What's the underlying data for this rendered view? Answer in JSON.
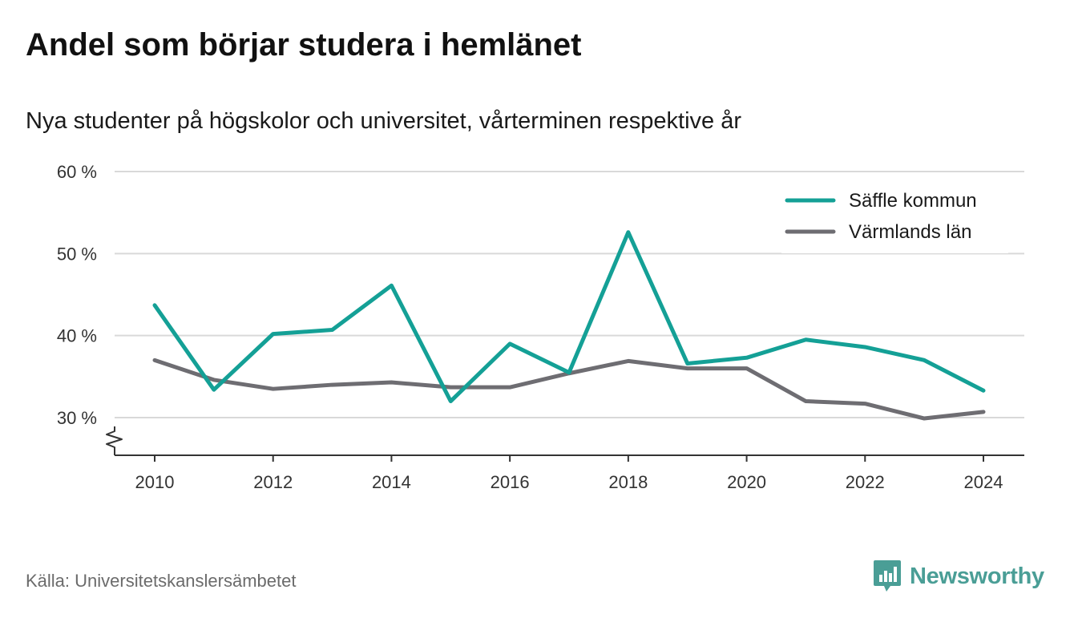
{
  "header": {
    "title": "Andel som börjar studera i hemlänet",
    "subtitle": "Nya studenter på högskolor och universitet, vårterminen respektive år"
  },
  "footer": {
    "source": "Källa: Universitetskanslersämbetet",
    "brand": "Newsworthy",
    "brand_color": "#4a9e96"
  },
  "chart_data": {
    "type": "line",
    "x": [
      2010,
      2011,
      2012,
      2013,
      2014,
      2015,
      2016,
      2017,
      2018,
      2019,
      2020,
      2021,
      2022,
      2023,
      2024
    ],
    "x_ticks": [
      2010,
      2012,
      2014,
      2016,
      2018,
      2020,
      2022,
      2024
    ],
    "x_tick_labels": [
      "2010",
      "2012",
      "2014",
      "2016",
      "2018",
      "2020",
      "2022",
      "2024"
    ],
    "y_ticks": [
      30,
      40,
      50,
      60
    ],
    "y_tick_labels": [
      "30 %",
      "40 %",
      "50 %",
      "60 %"
    ],
    "ylim": [
      30,
      60
    ],
    "axis_break": true,
    "grid": true,
    "legend_position": "top-right",
    "series": [
      {
        "name": "Säffle kommun",
        "color": "#14a096",
        "values": [
          43.7,
          33.4,
          40.2,
          40.7,
          46.1,
          32.0,
          39.0,
          35.5,
          52.6,
          36.6,
          37.3,
          39.5,
          38.6,
          37.0,
          33.3
        ]
      },
      {
        "name": "Värmlands län",
        "color": "#6e6d72",
        "values": [
          37.0,
          34.6,
          33.5,
          34.0,
          34.3,
          33.7,
          33.7,
          35.4,
          36.9,
          36.0,
          36.0,
          32.0,
          31.7,
          29.9,
          30.7
        ]
      }
    ]
  }
}
